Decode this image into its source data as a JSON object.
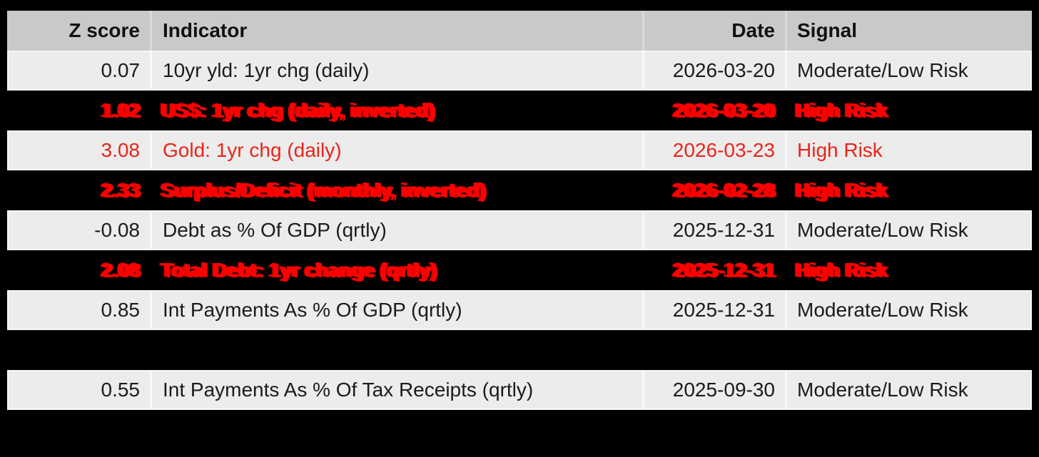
{
  "table": {
    "columns": [
      {
        "key": "z",
        "label": "Z score",
        "align": "right"
      },
      {
        "key": "indicator",
        "label": "Indicator",
        "align": "left"
      },
      {
        "key": "date",
        "label": "Date",
        "align": "right"
      },
      {
        "key": "signal",
        "label": "Signal",
        "align": "left"
      }
    ],
    "rows": [
      {
        "z": "0.07",
        "indicator": "10yr yld: 1yr chg (daily)",
        "date": "2026-03-20",
        "signal": "Moderate/Low Risk",
        "style": "normal"
      },
      {
        "z": "1.02",
        "indicator": "US$: 1yr chg (daily, inverted)",
        "date": "2026-03-20",
        "signal": "High Risk",
        "style": "alert-bold"
      },
      {
        "z": "3.08",
        "indicator": "Gold: 1yr chg (daily)",
        "date": "2026-03-23",
        "signal": "High Risk",
        "style": "alert"
      },
      {
        "z": "2.33",
        "indicator": "Surplus/Deficit (monthly, inverted)",
        "date": "2026-02-28",
        "signal": "High Risk",
        "style": "alert-bold"
      },
      {
        "z": "-0.08",
        "indicator": "Debt as % Of GDP (qrtly)",
        "date": "2025-12-31",
        "signal": "Moderate/Low Risk",
        "style": "normal"
      },
      {
        "z": "2.08",
        "indicator": "Total Debt: 1yr change (qrtly)",
        "date": "2025-12-31",
        "signal": "High Risk",
        "style": "alert-bold"
      },
      {
        "z": "0.85",
        "indicator": "Int Payments As % Of GDP (qrtly)",
        "date": "2025-12-31",
        "signal": "Moderate/Low Risk",
        "style": "normal"
      },
      {
        "style": "spacer"
      },
      {
        "z": "0.55",
        "indicator": "Int Payments As % Of Tax Receipts (qrtly)",
        "date": "2025-09-30",
        "signal": "Moderate/Low Risk",
        "style": "normal"
      }
    ]
  },
  "colors": {
    "page_background": "#000000",
    "header_background": "#c9c9c9",
    "row_background": "#ececec",
    "text": "#1b1b1b",
    "alert_red_bold": "#ff0000",
    "alert_red": "#e8251b"
  },
  "chart_data": {
    "type": "table",
    "title": "",
    "columns": [
      "Z score",
      "Indicator",
      "Date",
      "Signal"
    ],
    "rows": [
      [
        "0.07",
        "10yr yld: 1yr chg (daily)",
        "2026-03-20",
        "Moderate/Low Risk"
      ],
      [
        "1.02",
        "US$: 1yr chg (daily, inverted)",
        "2026-03-20",
        "High Risk"
      ],
      [
        "3.08",
        "Gold: 1yr chg (daily)",
        "2026-03-23",
        "High Risk"
      ],
      [
        "2.33",
        "Surplus/Deficit (monthly, inverted)",
        "2026-02-28",
        "High Risk"
      ],
      [
        "-0.08",
        "Debt as % Of GDP (qrtly)",
        "2025-12-31",
        "Moderate/Low Risk"
      ],
      [
        "2.08",
        "Total Debt: 1yr change (qrtly)",
        "2025-12-31",
        "High Risk"
      ],
      [
        "0.85",
        "Int Payments As % Of GDP (qrtly)",
        "2025-12-31",
        "Moderate/Low Risk"
      ],
      [
        "0.55",
        "Int Payments As % Of Tax Receipts (qrtly)",
        "2025-09-30",
        "Moderate/Low Risk"
      ]
    ],
    "high_risk_row_indices": [
      1,
      2,
      3,
      5
    ],
    "layout_hints": {
      "background": "black",
      "high_risk_bold_rows_on_black": [
        1,
        3,
        5
      ],
      "column_alignment": [
        "right",
        "left",
        "right",
        "left"
      ]
    }
  }
}
